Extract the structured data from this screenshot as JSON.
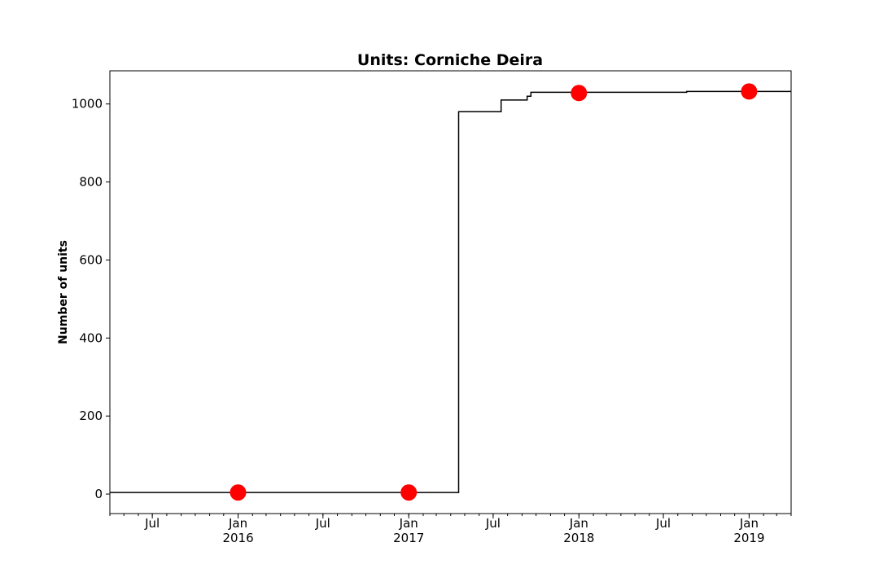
{
  "chart_data": {
    "type": "line",
    "title": "Units: Corniche Deira",
    "xlabel": "",
    "ylabel": "Number of units",
    "xlim": [
      "2015-04-01",
      "2019-04-01"
    ],
    "ylim": [
      -50,
      1085
    ],
    "y_ticks": [
      0,
      200,
      400,
      600,
      800,
      1000
    ],
    "x_major_ticks": [
      {
        "date": "2015-07-01",
        "label": "Jul",
        "year": ""
      },
      {
        "date": "2016-01-01",
        "label": "Jan",
        "year": "2016"
      },
      {
        "date": "2016-07-01",
        "label": "Jul",
        "year": ""
      },
      {
        "date": "2017-01-01",
        "label": "Jan",
        "year": "2017"
      },
      {
        "date": "2017-07-01",
        "label": "Jul",
        "year": ""
      },
      {
        "date": "2018-01-01",
        "label": "Jan",
        "year": "2018"
      },
      {
        "date": "2018-07-01",
        "label": "Jul",
        "year": ""
      },
      {
        "date": "2019-01-01",
        "label": "Jan",
        "year": "2019"
      }
    ],
    "series": [
      {
        "style": "step",
        "color": "#000000",
        "x": [
          "2015-04-01",
          "2017-04-18",
          "2017-07-18",
          "2017-09-12",
          "2017-09-20",
          "2018-08-20",
          "2019-04-01"
        ],
        "y": [
          4,
          980,
          1010,
          1020,
          1030,
          1032,
          1032
        ]
      },
      {
        "style": "markers",
        "color": "#ff0000",
        "x": [
          "2016-01-01",
          "2017-01-01",
          "2018-01-01",
          "2019-01-01"
        ],
        "y": [
          4,
          4,
          1028,
          1032
        ]
      }
    ],
    "grid": false,
    "legend": "none"
  }
}
